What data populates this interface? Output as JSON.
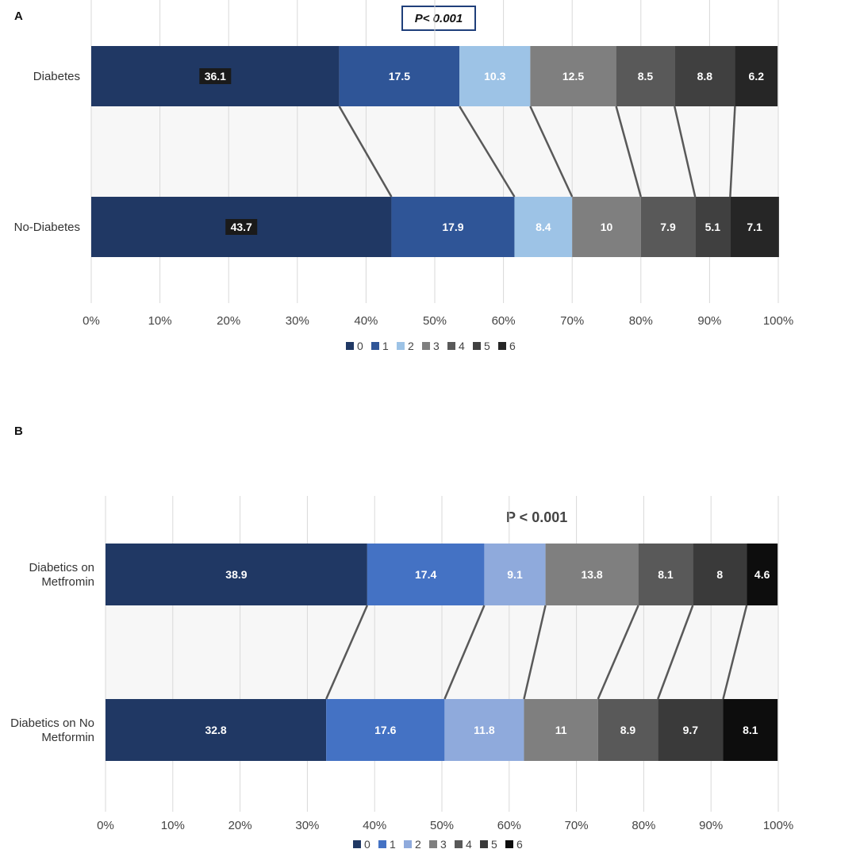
{
  "chart_data": [
    {
      "panel": "A",
      "type": "bar",
      "orientation": "horizontal",
      "stacked": "100%",
      "categories": [
        "Diabetes",
        "No-Diabetes"
      ],
      "series": [
        {
          "name": "0",
          "values": [
            36.1,
            43.7
          ],
          "color": "#203864"
        },
        {
          "name": "1",
          "values": [
            17.5,
            17.9
          ],
          "color": "#2f5597"
        },
        {
          "name": "2",
          "values": [
            10.3,
            8.4
          ],
          "color": "#9dc3e6"
        },
        {
          "name": "3",
          "values": [
            12.5,
            10
          ],
          "color": "#7f7f7f"
        },
        {
          "name": "4",
          "values": [
            8.5,
            7.9
          ],
          "color": "#595959"
        },
        {
          "name": "5",
          "values": [
            8.8,
            5.1
          ],
          "color": "#404040"
        },
        {
          "name": "6",
          "values": [
            6.2,
            7.1
          ],
          "color": "#262626"
        }
      ],
      "x_ticks": [
        "0%",
        "10%",
        "20%",
        "30%",
        "40%",
        "50%",
        "60%",
        "70%",
        "80%",
        "90%",
        "100%"
      ],
      "xlim": [
        0,
        100
      ],
      "annotation": "P< 0.001",
      "legend": "bottom",
      "grid": true
    },
    {
      "panel": "B",
      "type": "bar",
      "orientation": "horizontal",
      "stacked": "100%",
      "categories": [
        "Diabetics on Metfromin",
        "Diabetics on No Metformin"
      ],
      "series": [
        {
          "name": "0",
          "values": [
            38.9,
            32.8
          ],
          "color": "#203864"
        },
        {
          "name": "1",
          "values": [
            17.4,
            17.6
          ],
          "color": "#4472c4"
        },
        {
          "name": "2",
          "values": [
            9.1,
            11.8
          ],
          "color": "#8faadc"
        },
        {
          "name": "3",
          "values": [
            13.8,
            11
          ],
          "color": "#7f7f7f"
        },
        {
          "name": "4",
          "values": [
            8.1,
            8.9
          ],
          "color": "#595959"
        },
        {
          "name": "5",
          "values": [
            8,
            9.7
          ],
          "color": "#3a3a3a"
        },
        {
          "name": "6",
          "values": [
            4.6,
            8.1
          ],
          "color": "#0d0d0d"
        }
      ],
      "x_ticks": [
        "0%",
        "10%",
        "20%",
        "30%",
        "40%",
        "50%",
        "60%",
        "70%",
        "80%",
        "90%",
        "100%"
      ],
      "xlim": [
        0,
        100
      ],
      "annotation": "P < 0.001",
      "legend": "bottom",
      "grid": true
    }
  ],
  "panels": {
    "a": {
      "letter": "A",
      "pvalue": "P< 0.001",
      "cat_lines": [
        [
          "Diabetes"
        ],
        [
          "No-Diabetes"
        ]
      ]
    },
    "b": {
      "letter": "B",
      "pvalue": "P < 0.001",
      "cat_lines": [
        [
          "Diabetics on",
          "Metfromin"
        ],
        [
          "Diabetics on No",
          "Metformin"
        ]
      ]
    }
  }
}
